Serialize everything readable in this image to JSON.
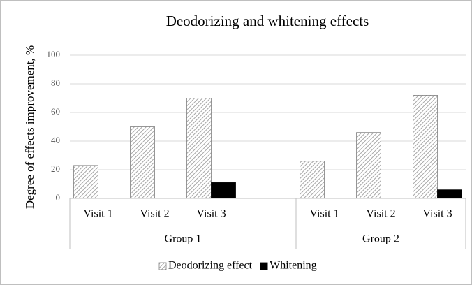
{
  "chart_data": {
    "type": "bar",
    "title": "Deodorizing and whitening effects",
    "y_label": "Degree of effects improvement, %",
    "categories": [
      "Visit 1",
      "Visit 2",
      "Visit 3",
      null,
      "Visit 1",
      "Visit 2",
      "Visit 3"
    ],
    "groups": [
      {
        "name": "Group 1",
        "count": 4
      },
      {
        "name": "Group 2",
        "count": 3
      }
    ],
    "series": [
      {
        "name": "Deodorizing effect",
        "color": "#a6a6a6",
        "hatch": true,
        "values": [
          23,
          50,
          70,
          null,
          26,
          46,
          72
        ]
      },
      {
        "name": "Whitening",
        "color": "#000000",
        "hatch": false,
        "values": [
          null,
          null,
          11,
          null,
          null,
          null,
          6
        ]
      }
    ],
    "ylim": [
      0,
      100
    ],
    "yticks": [
      0,
      20,
      40,
      60,
      80,
      100
    ],
    "grid": true,
    "legend": "bottom"
  }
}
